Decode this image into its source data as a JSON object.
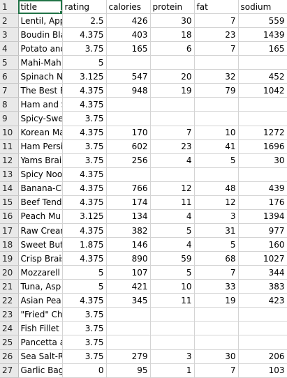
{
  "sheet": {
    "headers": [
      "title",
      "rating",
      "calories",
      "protein",
      "fat",
      "sodium"
    ],
    "rows": [
      {
        "num": "2",
        "title": "Lentil, App",
        "rating": "2.5",
        "calories": "426",
        "protein": "30",
        "fat": "7",
        "sodium": "559"
      },
      {
        "num": "3",
        "title": "Boudin Bla",
        "rating": "4.375",
        "calories": "403",
        "protein": "18",
        "fat": "23",
        "sodium": "1439"
      },
      {
        "num": "4",
        "title": "Potato and",
        "rating": "3.75",
        "calories": "165",
        "protein": "6",
        "fat": "7",
        "sodium": "165"
      },
      {
        "num": "5",
        "title": "Mahi-Mah",
        "rating": "5",
        "calories": "",
        "protein": "",
        "fat": "",
        "sodium": ""
      },
      {
        "num": "6",
        "title": "Spinach N",
        "rating": "3.125",
        "calories": "547",
        "protein": "20",
        "fat": "32",
        "sodium": "452"
      },
      {
        "num": "7",
        "title": "The Best E",
        "rating": "4.375",
        "calories": "948",
        "protein": "19",
        "fat": "79",
        "sodium": "1042"
      },
      {
        "num": "8",
        "title": "Ham and S",
        "rating": "4.375",
        "calories": "",
        "protein": "",
        "fat": "",
        "sodium": ""
      },
      {
        "num": "9",
        "title": "Spicy-Swe",
        "rating": "3.75",
        "calories": "",
        "protein": "",
        "fat": "",
        "sodium": ""
      },
      {
        "num": "10",
        "title": "Korean Ma",
        "rating": "4.375",
        "calories": "170",
        "protein": "7",
        "fat": "10",
        "sodium": "1272"
      },
      {
        "num": "11",
        "title": "Ham Persi",
        "rating": "3.75",
        "calories": "602",
        "protein": "23",
        "fat": "41",
        "sodium": "1696"
      },
      {
        "num": "12",
        "title": "Yams Brais",
        "rating": "3.75",
        "calories": "256",
        "protein": "4",
        "fat": "5",
        "sodium": "30"
      },
      {
        "num": "13",
        "title": "Spicy Noo",
        "rating": "4.375",
        "calories": "",
        "protein": "",
        "fat": "",
        "sodium": ""
      },
      {
        "num": "14",
        "title": "Banana-Ch",
        "rating": "4.375",
        "calories": "766",
        "protein": "12",
        "fat": "48",
        "sodium": "439"
      },
      {
        "num": "15",
        "title": "Beef Tend",
        "rating": "4.375",
        "calories": "174",
        "protein": "11",
        "fat": "12",
        "sodium": "176"
      },
      {
        "num": "16",
        "title": "Peach Mu",
        "rating": "3.125",
        "calories": "134",
        "protein": "4",
        "fat": "3",
        "sodium": "1394"
      },
      {
        "num": "17",
        "title": "Raw Crean",
        "rating": "4.375",
        "calories": "382",
        "protein": "5",
        "fat": "31",
        "sodium": "977"
      },
      {
        "num": "18",
        "title": "Sweet But",
        "rating": "1.875",
        "calories": "146",
        "protein": "4",
        "fat": "5",
        "sodium": "160"
      },
      {
        "num": "19",
        "title": "Crisp Brais",
        "rating": "4.375",
        "calories": "890",
        "protein": "59",
        "fat": "68",
        "sodium": "1027"
      },
      {
        "num": "20",
        "title": "Mozzarell",
        "rating": "5",
        "calories": "107",
        "protein": "5",
        "fat": "7",
        "sodium": "344"
      },
      {
        "num": "21",
        "title": "Tuna, Asp",
        "rating": "5",
        "calories": "421",
        "protein": "10",
        "fat": "33",
        "sodium": "383"
      },
      {
        "num": "22",
        "title": "Asian Pea",
        "rating": "4.375",
        "calories": "345",
        "protein": "11",
        "fat": "19",
        "sodium": "423"
      },
      {
        "num": "23",
        "title": "\"Fried\" Ch",
        "rating": "3.75",
        "calories": "",
        "protein": "",
        "fat": "",
        "sodium": ""
      },
      {
        "num": "24",
        "title": "Fish Fillet",
        "rating": "3.75",
        "calories": "",
        "protein": "",
        "fat": "",
        "sodium": ""
      },
      {
        "num": "25",
        "title": "Pancetta a",
        "rating": "3.75",
        "calories": "",
        "protein": "",
        "fat": "",
        "sodium": ""
      },
      {
        "num": "26",
        "title": "Sea Salt-R",
        "rating": "3.75",
        "calories": "279",
        "protein": "3",
        "fat": "30",
        "sodium": "206"
      },
      {
        "num": "27",
        "title": "Garlic Bag",
        "rating": "0",
        "calories": "95",
        "protein": "1",
        "fat": "7",
        "sodium": "103"
      }
    ],
    "header_row_num": "1"
  }
}
